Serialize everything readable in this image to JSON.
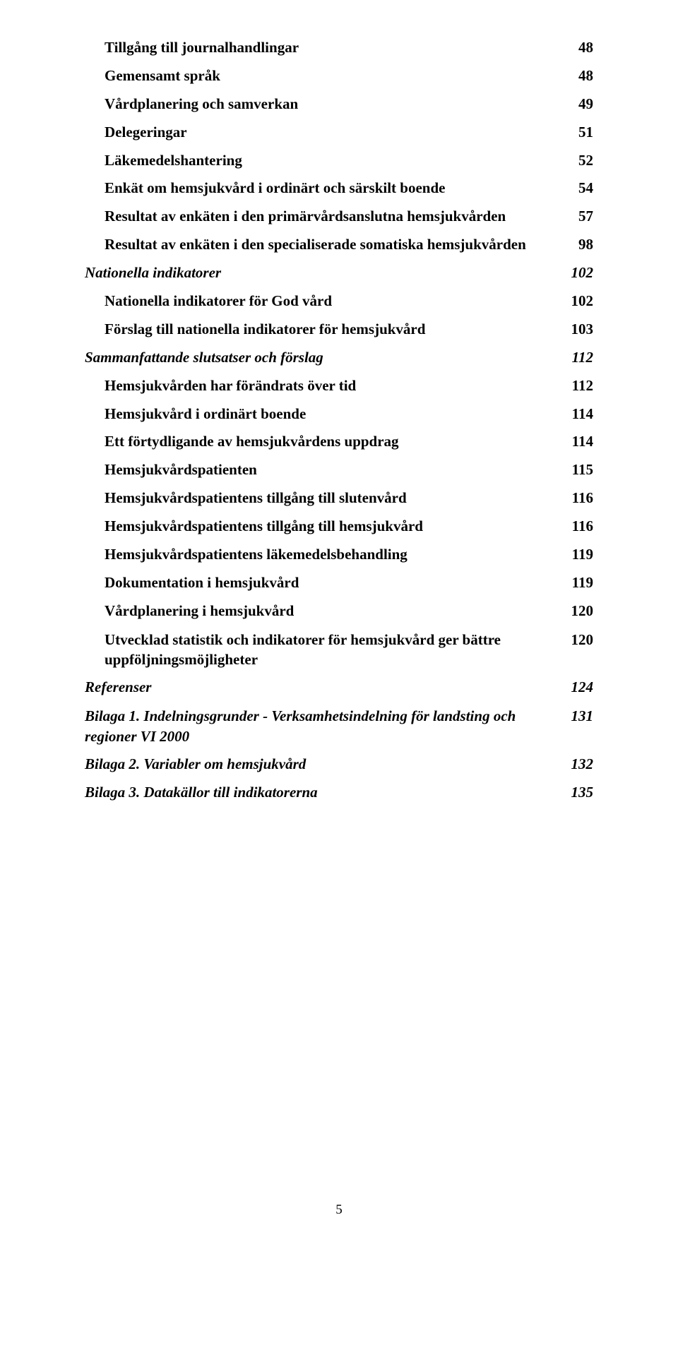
{
  "toc": [
    {
      "label": "Tillgång till journalhandlingar",
      "page": "48",
      "style": "bold",
      "indent": 1
    },
    {
      "label": "Gemensamt språk",
      "page": "48",
      "style": "bold",
      "indent": 1
    },
    {
      "label": "Vårdplanering och samverkan",
      "page": "49",
      "style": "bold",
      "indent": 1
    },
    {
      "label": "Delegeringar",
      "page": "51",
      "style": "bold",
      "indent": 1
    },
    {
      "label": "Läkemedelshantering",
      "page": "52",
      "style": "bold",
      "indent": 1
    },
    {
      "label": "Enkät om hemsjukvård i ordinärt och särskilt boende",
      "page": "54",
      "style": "bold",
      "indent": 1
    },
    {
      "label": "Resultat av enkäten i den primärvårdsanslutna hemsjukvården",
      "page": "57",
      "style": "bold",
      "indent": 2
    },
    {
      "label": "Resultat av enkäten i den specialiserade somatiska hemsjukvården",
      "page": "98",
      "style": "bold",
      "indent": 2
    },
    {
      "label": "Nationella indikatorer",
      "page": "102",
      "style": "italic",
      "indent": 0
    },
    {
      "label": "Nationella indikatorer för God vård",
      "page": "102",
      "style": "bold",
      "indent": 1
    },
    {
      "label": "Förslag till nationella indikatorer för hemsjukvård",
      "page": "103",
      "style": "bold",
      "indent": 1
    },
    {
      "label": "Sammanfattande slutsatser och  förslag",
      "page": "112",
      "style": "italic",
      "indent": 0
    },
    {
      "label": "Hemsjukvården har förändrats över tid",
      "page": "112",
      "style": "bold",
      "indent": 1
    },
    {
      "label": "Hemsjukvård i ordinärt boende",
      "page": "114",
      "style": "bold",
      "indent": 1
    },
    {
      "label": "Ett förtydligande av hemsjukvårdens uppdrag",
      "page": "114",
      "style": "bold",
      "indent": 1
    },
    {
      "label": "Hemsjukvårdspatienten",
      "page": "115",
      "style": "bold",
      "indent": 1
    },
    {
      "label": "Hemsjukvårdspatientens tillgång till slutenvård",
      "page": "116",
      "style": "bold",
      "indent": 1
    },
    {
      "label": "Hemsjukvårdspatientens tillgång till hemsjukvård",
      "page": "116",
      "style": "bold",
      "indent": 1
    },
    {
      "label": "Hemsjukvårdspatientens läkemedelsbehandling",
      "page": "119",
      "style": "bold",
      "indent": 1
    },
    {
      "label": "Dokumentation i hemsjukvård",
      "page": "119",
      "style": "bold",
      "indent": 1
    },
    {
      "label": "Vårdplanering i hemsjukvård",
      "page": "120",
      "style": "bold",
      "indent": 1
    },
    {
      "label": "Utvecklad statistik och indikatorer för hemsjukvård ger bättre uppföljningsmöjligheter",
      "page": "120",
      "style": "bold",
      "indent": 1,
      "multiline": true
    },
    {
      "label": "Referenser",
      "page": "124",
      "style": "italic",
      "indent": 0
    },
    {
      "label": "Bilaga 1. Indelningsgrunder  - Verksamhetsindelning för landsting och regioner VI 2000",
      "page": "131",
      "style": "italic",
      "indent": 0,
      "multiline": true
    },
    {
      "label": "Bilaga 2. Variabler om hemsjukvård",
      "page": "132",
      "style": "italic",
      "indent": 0
    },
    {
      "label": "Bilaga 3. Datakällor till indikatorerna",
      "page": "135",
      "style": "italic",
      "indent": 0
    }
  ],
  "pageNumber": "5"
}
